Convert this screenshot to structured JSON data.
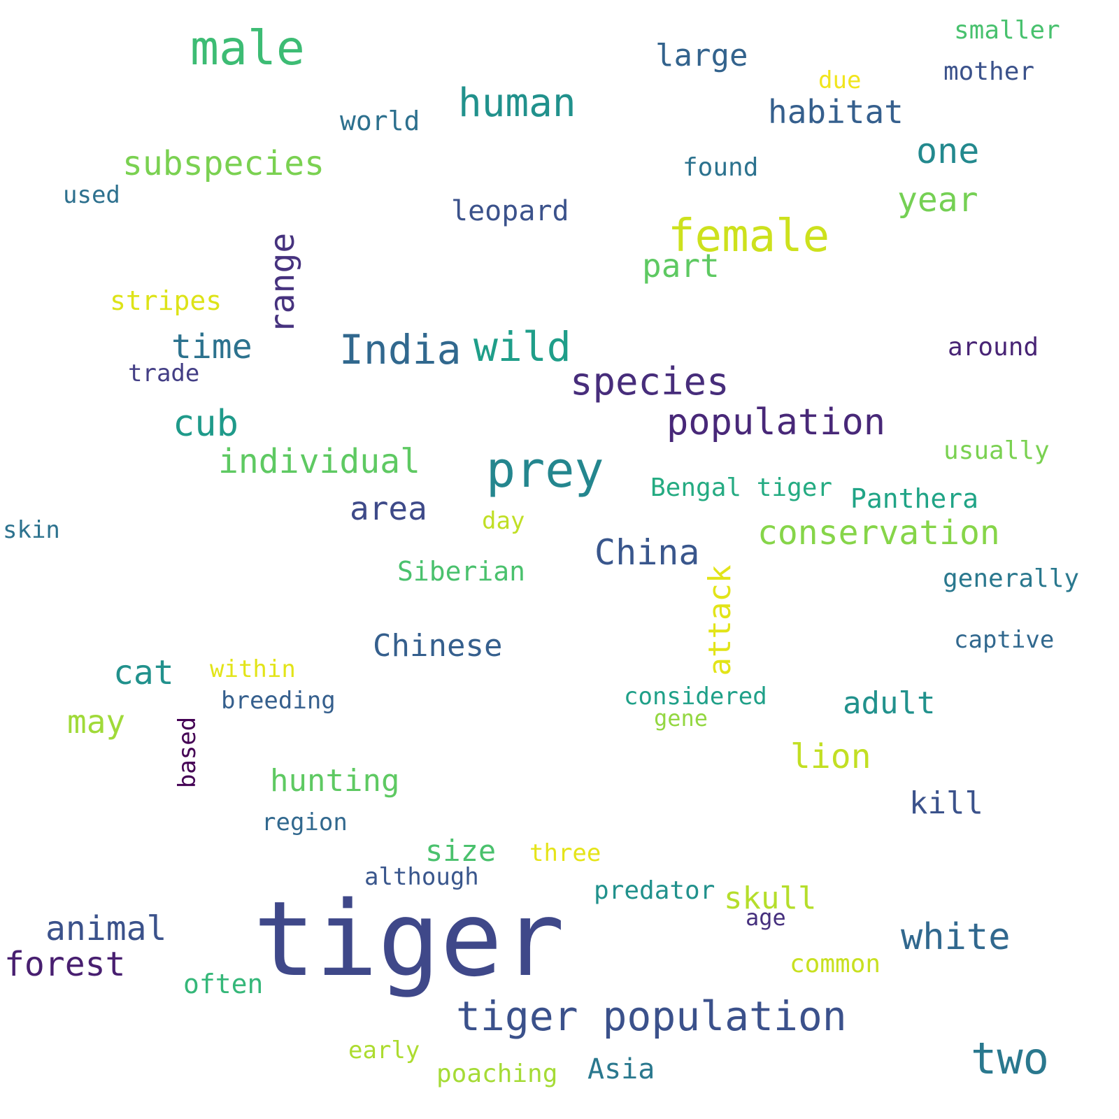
{
  "words": [
    {
      "text": "tiger",
      "color": "#3f4889"
    },
    {
      "text": "male",
      "color": "#3dbc74"
    },
    {
      "text": "prey",
      "color": "#24868e"
    },
    {
      "text": "female",
      "color": "#cde11d"
    },
    {
      "text": "tiger population",
      "color": "#3b518b"
    },
    {
      "text": "human",
      "color": "#21918c"
    },
    {
      "text": "India",
      "color": "#31688e"
    },
    {
      "text": "wild",
      "color": "#1f9e89"
    },
    {
      "text": "species",
      "color": "#472d7b"
    },
    {
      "text": "population",
      "color": "#482878"
    },
    {
      "text": "two",
      "color": "#2a788e"
    },
    {
      "text": "subspecies",
      "color": "#7ad151"
    },
    {
      "text": "white",
      "color": "#31688e"
    },
    {
      "text": "cub",
      "color": "#1f9a8a"
    },
    {
      "text": "habitat",
      "color": "#355f8d"
    },
    {
      "text": "time",
      "color": "#2c728e"
    },
    {
      "text": "conservation",
      "color": "#86d549"
    },
    {
      "text": "China",
      "color": "#39568c"
    },
    {
      "text": "one",
      "color": "#23898e"
    },
    {
      "text": "year",
      "color": "#75d054"
    },
    {
      "text": "individual",
      "color": "#5ec962"
    },
    {
      "text": "forest",
      "color": "#481f70"
    },
    {
      "text": "animal",
      "color": "#3b528b"
    },
    {
      "text": "large",
      "color": "#33638d"
    },
    {
      "text": "part",
      "color": "#5ec962"
    },
    {
      "text": "area",
      "color": "#3e4a89"
    },
    {
      "text": "range",
      "color": "#46327e"
    },
    {
      "text": "Chinese",
      "color": "#355f8d"
    },
    {
      "text": "cat",
      "color": "#21918c"
    },
    {
      "text": "lion",
      "color": "#c2df23"
    },
    {
      "text": "hunting",
      "color": "#5ec962"
    },
    {
      "text": "attack",
      "color": "#e2e418"
    },
    {
      "text": "skull",
      "color": "#b5de2b"
    },
    {
      "text": "may",
      "color": "#a0da39"
    },
    {
      "text": "adult",
      "color": "#21918c"
    },
    {
      "text": "kill",
      "color": "#3b528b"
    },
    {
      "text": "size",
      "color": "#4ac16d"
    },
    {
      "text": "leopard",
      "color": "#3b528b"
    },
    {
      "text": "Panthera",
      "color": "#20a486"
    },
    {
      "text": "Bengal tiger",
      "color": "#25ab82"
    },
    {
      "text": "often",
      "color": "#35b779"
    },
    {
      "text": "Siberian",
      "color": "#4ac16d"
    },
    {
      "text": "stripes",
      "color": "#dde318"
    },
    {
      "text": "world",
      "color": "#2d708e"
    },
    {
      "text": "around",
      "color": "#482475"
    },
    {
      "text": "found",
      "color": "#2c728e"
    },
    {
      "text": "usually",
      "color": "#7ad151"
    },
    {
      "text": "generally",
      "color": "#2a788e"
    },
    {
      "text": "predator",
      "color": "#21918c"
    },
    {
      "text": "common",
      "color": "#c8e020"
    },
    {
      "text": "smaller",
      "color": "#48c16e"
    },
    {
      "text": "mother",
      "color": "#3b528b"
    },
    {
      "text": "Asia",
      "color": "#2a788e"
    },
    {
      "text": "three",
      "color": "#e5e419"
    },
    {
      "text": "poaching",
      "color": "#a5db36"
    },
    {
      "text": "breeding",
      "color": "#355f8d"
    },
    {
      "text": "within",
      "color": "#e2e418"
    },
    {
      "text": "region",
      "color": "#31688e"
    },
    {
      "text": "although",
      "color": "#39568c"
    },
    {
      "text": "captive",
      "color": "#31688e"
    },
    {
      "text": "considered",
      "color": "#1fa088"
    },
    {
      "text": "trade",
      "color": "#433e85"
    },
    {
      "text": "skin",
      "color": "#2c728e"
    },
    {
      "text": "used",
      "color": "#2d708e"
    },
    {
      "text": "early",
      "color": "#addc30"
    },
    {
      "text": "day",
      "color": "#c0df25"
    },
    {
      "text": "gene",
      "color": "#93d741"
    },
    {
      "text": "age",
      "color": "#46307e"
    },
    {
      "text": "due",
      "color": "#f1e51d"
    },
    {
      "text": "based",
      "color": "#440154"
    }
  ]
}
